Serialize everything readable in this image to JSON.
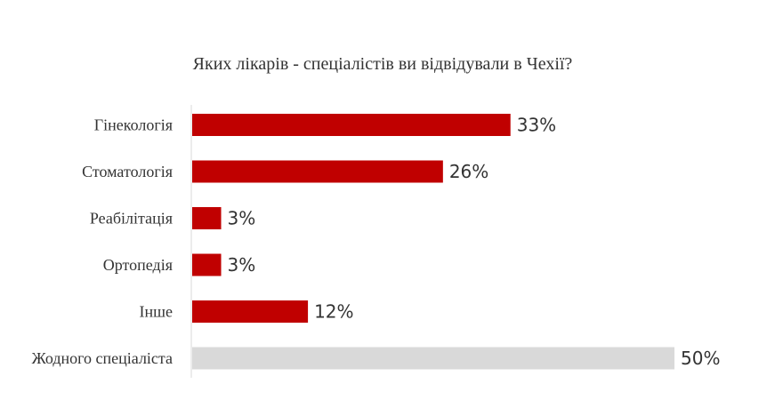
{
  "chart_data": {
    "type": "bar",
    "orientation": "horizontal",
    "title": "Яких лікарів - спеціалістів ви відвідували в Чехії?",
    "categories": [
      "Гінекологія",
      "Стоматологія",
      "Реабілітація",
      "Ортопедія",
      "Інше",
      "Жодного спеціаліста"
    ],
    "values": [
      33,
      26,
      3,
      3,
      12,
      50
    ],
    "value_labels": [
      "33%",
      "26%",
      "3%",
      "3%",
      "12%",
      "50%"
    ],
    "unit": "%",
    "xlim": [
      0,
      50
    ],
    "grid": false,
    "legend": "none",
    "colors": {
      "primary": "#c00000",
      "highlight_last": "#d9d9d9",
      "axis": "#d9d9d9",
      "text": "#333333"
    }
  }
}
